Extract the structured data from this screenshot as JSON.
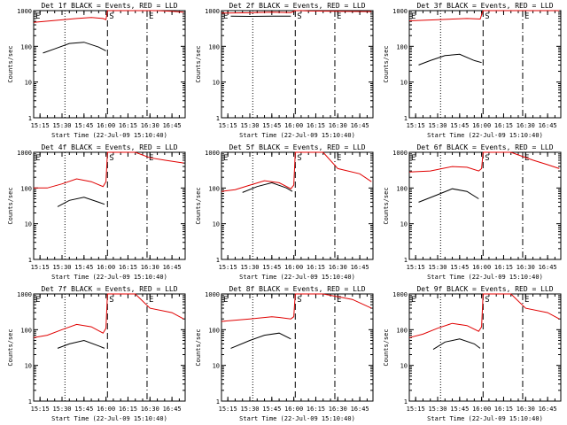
{
  "page": {
    "background": "#ffffff",
    "axis_color": "#000000"
  },
  "colors": {
    "events": "#000000",
    "lld": "#e00000"
  },
  "chart_data": [
    {
      "type": "line",
      "title": "Det 1f BLACK = Events, RED = LLD",
      "xlabel": "Start Time (22-Jul-09 15:10:40)",
      "ylabel": "Counts/sec",
      "y_scale": "log",
      "ylim": [
        1,
        1000
      ],
      "y_ticks": [
        1,
        10,
        100,
        1000
      ],
      "x_ticks": [
        "15:15",
        "15:30",
        "15:45",
        "16:00",
        "16:15",
        "16:30",
        "16:45"
      ],
      "xlim": [
        "15:10:40",
        "16:54:00"
      ],
      "markers": [
        {
          "label": "E",
          "time": "15:10:40",
          "style": "dotted"
        },
        {
          "label": "",
          "time": "15:32:00",
          "style": "dotted"
        },
        {
          "label": "S",
          "time": "16:01:00",
          "style": "dashed"
        },
        {
          "label": "E",
          "time": "16:28:00",
          "style": "dashdot"
        }
      ],
      "series": [
        {
          "name": "Events",
          "color": "#000000",
          "x": [
            "15:17",
            "15:25",
            "15:35",
            "15:45",
            "15:55",
            "16:00"
          ],
          "y": [
            65,
            85,
            120,
            130,
            95,
            75
          ]
        },
        {
          "name": "LLD",
          "color": "#e00000",
          "x": [
            "15:10:40",
            "15:25",
            "15:40",
            "15:50",
            "15:58",
            "16:00",
            "16:01",
            "16:10",
            "16:20",
            "16:35",
            "16:45",
            "16:53"
          ],
          "y": [
            470,
            530,
            600,
            640,
            600,
            560,
            1000,
            1000,
            1000,
            1000,
            960,
            900
          ]
        }
      ]
    },
    {
      "type": "line",
      "title": "Det 2f BLACK = Events, RED = LLD",
      "xlabel": "Start Time (22-Jul-09 15:10:40)",
      "ylabel": "Counts/sec",
      "y_scale": "log",
      "ylim": [
        1,
        1000
      ],
      "y_ticks": [
        1,
        10,
        100,
        1000
      ],
      "x_ticks": [
        "15:15",
        "15:30",
        "15:45",
        "16:00",
        "16:15",
        "16:30",
        "16:45"
      ],
      "xlim": [
        "15:10:40",
        "16:54:00"
      ],
      "markers": [
        {
          "label": "E",
          "time": "15:10:40",
          "style": "dotted"
        },
        {
          "label": "",
          "time": "15:32:00",
          "style": "dotted"
        },
        {
          "label": "S",
          "time": "16:01:00",
          "style": "dashed"
        },
        {
          "label": "E",
          "time": "16:28:00",
          "style": "dashdot"
        }
      ],
      "series": [
        {
          "name": "Events",
          "color": "#000000",
          "x": [
            "15:17",
            "15:30",
            "15:45",
            "15:58"
          ],
          "y": [
            700,
            690,
            700,
            700
          ]
        },
        {
          "name": "LLD",
          "color": "#e00000",
          "x": [
            "15:10:40",
            "15:30",
            "15:45",
            "15:58",
            "16:01",
            "16:05",
            "16:10",
            "16:30",
            "16:53"
          ],
          "y": [
            850,
            870,
            900,
            880,
            1000,
            1000,
            980,
            960,
            940
          ]
        }
      ]
    },
    {
      "type": "line",
      "title": "Det 3f BLACK = Events, RED = LLD",
      "xlabel": "Start Time (22-Jul-09 15:10:40)",
      "ylabel": "Counts/sec",
      "y_scale": "log",
      "ylim": [
        1,
        1000
      ],
      "y_ticks": [
        1,
        10,
        100,
        1000
      ],
      "x_ticks": [
        "15:15",
        "15:30",
        "15:45",
        "16:00",
        "16:15",
        "16:30",
        "16:45"
      ],
      "xlim": [
        "15:10:40",
        "16:54:00"
      ],
      "markers": [
        {
          "label": "E",
          "time": "15:10:40",
          "style": "dotted"
        },
        {
          "label": "",
          "time": "15:32:00",
          "style": "dotted"
        },
        {
          "label": "S",
          "time": "16:01:00",
          "style": "dashed"
        },
        {
          "label": "E",
          "time": "16:28:00",
          "style": "dashdot"
        }
      ],
      "series": [
        {
          "name": "Events",
          "color": "#000000",
          "x": [
            "15:17",
            "15:25",
            "15:35",
            "15:45",
            "15:55",
            "16:00"
          ],
          "y": [
            30,
            40,
            55,
            60,
            40,
            35
          ]
        },
        {
          "name": "LLD",
          "color": "#e00000",
          "x": [
            "15:10:40",
            "15:30",
            "15:50",
            "15:59",
            "16:01",
            "16:20",
            "16:40",
            "16:53"
          ],
          "y": [
            520,
            560,
            600,
            580,
            1000,
            1000,
            1000,
            1000
          ]
        }
      ]
    },
    {
      "type": "line",
      "title": "Det 4f BLACK = Events, RED = LLD",
      "xlabel": "Start Time (22-Jul-09 15:10:40)",
      "ylabel": "Counts/sec",
      "y_scale": "log",
      "ylim": [
        1,
        1000
      ],
      "y_ticks": [
        1,
        10,
        100,
        1000
      ],
      "x_ticks": [
        "15:15",
        "15:30",
        "15:45",
        "16:00",
        "16:15",
        "16:30",
        "16:45"
      ],
      "xlim": [
        "15:10:40",
        "16:54:00"
      ],
      "markers": [
        {
          "label": "E",
          "time": "15:10:40",
          "style": "dotted"
        },
        {
          "label": "",
          "time": "15:32:00",
          "style": "dotted"
        },
        {
          "label": "S",
          "time": "16:01:00",
          "style": "dashed"
        },
        {
          "label": "E",
          "time": "16:28:00",
          "style": "dashdot"
        }
      ],
      "series": [
        {
          "name": "Events",
          "color": "#000000",
          "x": [
            "15:27",
            "15:35",
            "15:45",
            "15:55",
            "15:59"
          ],
          "y": [
            30,
            45,
            55,
            40,
            35
          ]
        },
        {
          "name": "LLD",
          "color": "#e00000",
          "x": [
            "15:10:40",
            "15:20",
            "15:30",
            "15:40",
            "15:50",
            "15:58",
            "16:00",
            "16:01",
            "16:20",
            "16:30",
            "16:40",
            "16:53"
          ],
          "y": [
            100,
            100,
            130,
            180,
            150,
            110,
            150,
            1000,
            1000,
            700,
            600,
            500
          ]
        }
      ]
    },
    {
      "type": "line",
      "title": "Det 5f BLACK = Events, RED = LLD",
      "xlabel": "Start Time (22-Jul-09 15:10:40)",
      "ylabel": "Counts/sec",
      "y_scale": "log",
      "ylim": [
        1,
        1000
      ],
      "y_ticks": [
        1,
        10,
        100,
        1000
      ],
      "x_ticks": [
        "15:15",
        "15:30",
        "15:45",
        "16:00",
        "16:15",
        "16:30",
        "16:45"
      ],
      "xlim": [
        "15:10:40",
        "16:54:00"
      ],
      "markers": [
        {
          "label": "E",
          "time": "15:10:40",
          "style": "dotted"
        },
        {
          "label": "",
          "time": "15:32:00",
          "style": "dotted"
        },
        {
          "label": "S",
          "time": "16:01:00",
          "style": "dashed"
        },
        {
          "label": "E",
          "time": "16:28:00",
          "style": "dashdot"
        }
      ],
      "series": [
        {
          "name": "Events",
          "color": "#000000",
          "x": [
            "15:25",
            "15:35",
            "15:45",
            "15:55",
            "15:59"
          ],
          "y": [
            75,
            110,
            140,
            100,
            80
          ]
        },
        {
          "name": "LLD",
          "color": "#e00000",
          "x": [
            "15:10:40",
            "15:20",
            "15:30",
            "15:40",
            "15:50",
            "15:58",
            "16:00",
            "16:01",
            "16:20",
            "16:30",
            "16:45",
            "16:53"
          ],
          "y": [
            80,
            90,
            120,
            160,
            140,
            95,
            120,
            1000,
            1000,
            350,
            250,
            150
          ]
        }
      ]
    },
    {
      "type": "line",
      "title": "Det 6f BLACK = Events, RED = LLD",
      "xlabel": "Start Time (22-Jul-09 15:10:40)",
      "ylabel": "Counts/sec",
      "y_scale": "log",
      "ylim": [
        1,
        1000
      ],
      "y_ticks": [
        1,
        10,
        100,
        1000
      ],
      "x_ticks": [
        "15:15",
        "15:30",
        "15:45",
        "16:00",
        "16:15",
        "16:30",
        "16:45"
      ],
      "xlim": [
        "15:10:40",
        "16:54:00"
      ],
      "markers": [
        {
          "label": "E",
          "time": "15:10:40",
          "style": "dotted"
        },
        {
          "label": "",
          "time": "15:32:00",
          "style": "dotted"
        },
        {
          "label": "S",
          "time": "16:01:00",
          "style": "dashed"
        },
        {
          "label": "E",
          "time": "16:28:00",
          "style": "dashdot"
        }
      ],
      "series": [
        {
          "name": "Events",
          "color": "#000000",
          "x": [
            "15:17",
            "15:30",
            "15:40",
            "15:50",
            "15:58"
          ],
          "y": [
            40,
            65,
            95,
            80,
            50
          ]
        },
        {
          "name": "LLD",
          "color": "#e00000",
          "x": [
            "15:10:40",
            "15:25",
            "15:40",
            "15:50",
            "15:58",
            "16:00",
            "16:01",
            "16:20",
            "16:35",
            "16:45",
            "16:53"
          ],
          "y": [
            280,
            300,
            400,
            380,
            300,
            350,
            1000,
            1000,
            600,
            450,
            350
          ]
        }
      ]
    },
    {
      "type": "line",
      "title": "Det 7f BLACK = Events, RED = LLD",
      "xlabel": "Start Time (22-Jul-09 15:10:40)",
      "ylabel": "Counts/sec",
      "y_scale": "log",
      "ylim": [
        1,
        1000
      ],
      "y_ticks": [
        1,
        10,
        100,
        1000
      ],
      "x_ticks": [
        "15:15",
        "15:30",
        "15:45",
        "16:00",
        "16:15",
        "16:30",
        "16:45"
      ],
      "xlim": [
        "15:10:40",
        "16:54:00"
      ],
      "markers": [
        {
          "label": "E",
          "time": "15:10:40",
          "style": "dotted"
        },
        {
          "label": "",
          "time": "15:32:00",
          "style": "dotted"
        },
        {
          "label": "S",
          "time": "16:01:00",
          "style": "dashed"
        },
        {
          "label": "E",
          "time": "16:28:00",
          "style": "dashdot"
        }
      ],
      "series": [
        {
          "name": "Events",
          "color": "#000000",
          "x": [
            "15:27",
            "15:35",
            "15:45",
            "15:55",
            "15:59"
          ],
          "y": [
            30,
            40,
            50,
            35,
            30
          ]
        },
        {
          "name": "LLD",
          "color": "#e00000",
          "x": [
            "15:10:40",
            "15:20",
            "15:30",
            "15:40",
            "15:50",
            "15:58",
            "16:00",
            "16:01",
            "16:20",
            "16:30",
            "16:45",
            "16:53"
          ],
          "y": [
            60,
            70,
            100,
            140,
            120,
            80,
            110,
            1000,
            1000,
            400,
            300,
            200
          ]
        }
      ]
    },
    {
      "type": "line",
      "title": "Det 8f BLACK = Events, RED = LLD",
      "xlabel": "Start Time (22-Jul-09 15:10:40)",
      "ylabel": "Counts/sec",
      "y_scale": "log",
      "ylim": [
        1,
        1000
      ],
      "y_ticks": [
        1,
        10,
        100,
        1000
      ],
      "x_ticks": [
        "15:15",
        "15:30",
        "15:45",
        "16:00",
        "16:15",
        "16:30",
        "16:45"
      ],
      "xlim": [
        "15:10:40",
        "16:54:00"
      ],
      "markers": [
        {
          "label": "E",
          "time": "15:10:40",
          "style": "dotted"
        },
        {
          "label": "",
          "time": "15:32:00",
          "style": "dotted"
        },
        {
          "label": "S",
          "time": "16:01:00",
          "style": "dashed"
        },
        {
          "label": "E",
          "time": "16:28:00",
          "style": "dashdot"
        }
      ],
      "series": [
        {
          "name": "Events",
          "color": "#000000",
          "x": [
            "15:17",
            "15:30",
            "15:40",
            "15:50",
            "15:58"
          ],
          "y": [
            30,
            50,
            70,
            80,
            55
          ]
        },
        {
          "name": "LLD",
          "color": "#e00000",
          "x": [
            "15:10:40",
            "15:30",
            "15:45",
            "15:50",
            "15:58",
            "16:00",
            "16:01",
            "16:20",
            "16:40",
            "16:53"
          ],
          "y": [
            170,
            200,
            230,
            220,
            200,
            230,
            1000,
            1000,
            700,
            400
          ]
        }
      ]
    },
    {
      "type": "line",
      "title": "Det 9f BLACK = Events, RED = LLD",
      "xlabel": "Start Time (22-Jul-09 15:10:40)",
      "ylabel": "Counts/sec",
      "y_scale": "log",
      "ylim": [
        1,
        1000
      ],
      "y_ticks": [
        1,
        10,
        100,
        1000
      ],
      "x_ticks": [
        "15:15",
        "15:30",
        "15:45",
        "16:00",
        "16:15",
        "16:30",
        "16:45"
      ],
      "xlim": [
        "15:10:40",
        "16:54:00"
      ],
      "markers": [
        {
          "label": "E",
          "time": "15:10:40",
          "style": "dotted"
        },
        {
          "label": "",
          "time": "15:32:00",
          "style": "dotted"
        },
        {
          "label": "S",
          "time": "16:01:00",
          "style": "dashed"
        },
        {
          "label": "E",
          "time": "16:28:00",
          "style": "dashdot"
        }
      ],
      "series": [
        {
          "name": "Events",
          "color": "#000000",
          "x": [
            "15:27",
            "15:35",
            "15:45",
            "15:55",
            "15:59"
          ],
          "y": [
            28,
            45,
            55,
            40,
            30
          ]
        },
        {
          "name": "LLD",
          "color": "#e00000",
          "x": [
            "15:10:40",
            "15:20",
            "15:30",
            "15:40",
            "15:50",
            "15:58",
            "16:00",
            "16:01",
            "16:20",
            "16:30",
            "16:45",
            "16:53"
          ],
          "y": [
            60,
            75,
            110,
            150,
            130,
            90,
            120,
            1000,
            1000,
            400,
            300,
            200
          ]
        }
      ]
    }
  ]
}
